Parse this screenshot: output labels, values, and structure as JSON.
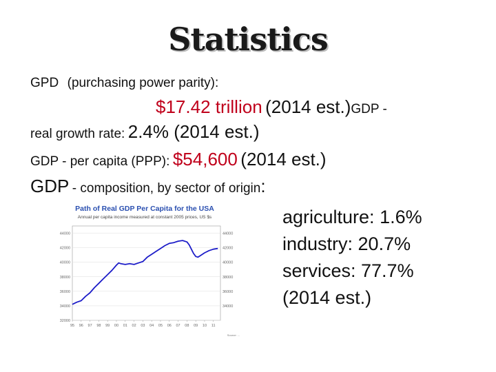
{
  "slide": {
    "title": "Statistics",
    "gdp_ppp": {
      "label": "GPD",
      "sub": "(purchasing power parity)",
      "colon": ":",
      "value": "$17.42 trillion",
      "note": "(2014 est.)"
    },
    "growth": {
      "label_tail": "GDP -",
      "label": "real growth rate:",
      "value": "2.4% (2014 est.)"
    },
    "per_capita": {
      "label": "GDP - per capita (PPP):",
      "value": "$54,600",
      "note": "(2014 est.)"
    },
    "composition": {
      "label_big": "GDP",
      "label_rest": "- composition, by sector of origin",
      "colon": ":"
    },
    "sectors": [
      "agriculture: 1.6%",
      "industry: 20.7%",
      "services: 77.7%",
      "(2014 est.)"
    ],
    "colors": {
      "value_red": "#c0001b",
      "line_blue": "#1c1cc8",
      "chart_title_blue": "#2a4fb0"
    }
  },
  "chart_data": {
    "type": "line",
    "title": "Path of Real GDP Per Capita for the USA",
    "subtitle": "Annual per capita income measured at constant 2005 prices, US $s",
    "ylim": [
      32000,
      45000
    ],
    "y_ticks_left": [
      "44000",
      "42000",
      "40000",
      "38000",
      "36000",
      "34000",
      "32000"
    ],
    "y_ticks_right": [
      "44000",
      "42000",
      "40000",
      "38000",
      "36000",
      "34000"
    ],
    "x_tick_labels": [
      "95",
      "96",
      "97",
      "98",
      "99",
      "00",
      "01",
      "02",
      "03",
      "04",
      "05",
      "06",
      "07",
      "08",
      "09",
      "10",
      "11"
    ],
    "series": [
      {
        "x": [
          1995,
          1995.5,
          1996,
          1996.5,
          1997,
          1997.5,
          1998,
          1998.5,
          1999,
          1999.5,
          2000,
          2000.25,
          2000.5,
          2001,
          2001.5,
          2002,
          2002.5,
          2003,
          2003.5,
          2004,
          2004.5,
          2005,
          2005.5,
          2006,
          2006.5,
          2007,
          2007.5,
          2008,
          2008.25,
          2008.5,
          2008.75,
          2009,
          2009.25,
          2009.5,
          2010,
          2010.5,
          2011,
          2011.5
        ],
        "values": [
          34200,
          34500,
          34700,
          35300,
          35800,
          36500,
          37100,
          37700,
          38300,
          38900,
          39600,
          39900,
          39800,
          39700,
          39800,
          39700,
          39900,
          40100,
          40700,
          41100,
          41500,
          41900,
          42300,
          42600,
          42700,
          42900,
          43000,
          42800,
          42400,
          41800,
          41200,
          40800,
          40700,
          40900,
          41300,
          41600,
          41800,
          41900
        ]
      }
    ],
    "source": "Source: ..."
  }
}
